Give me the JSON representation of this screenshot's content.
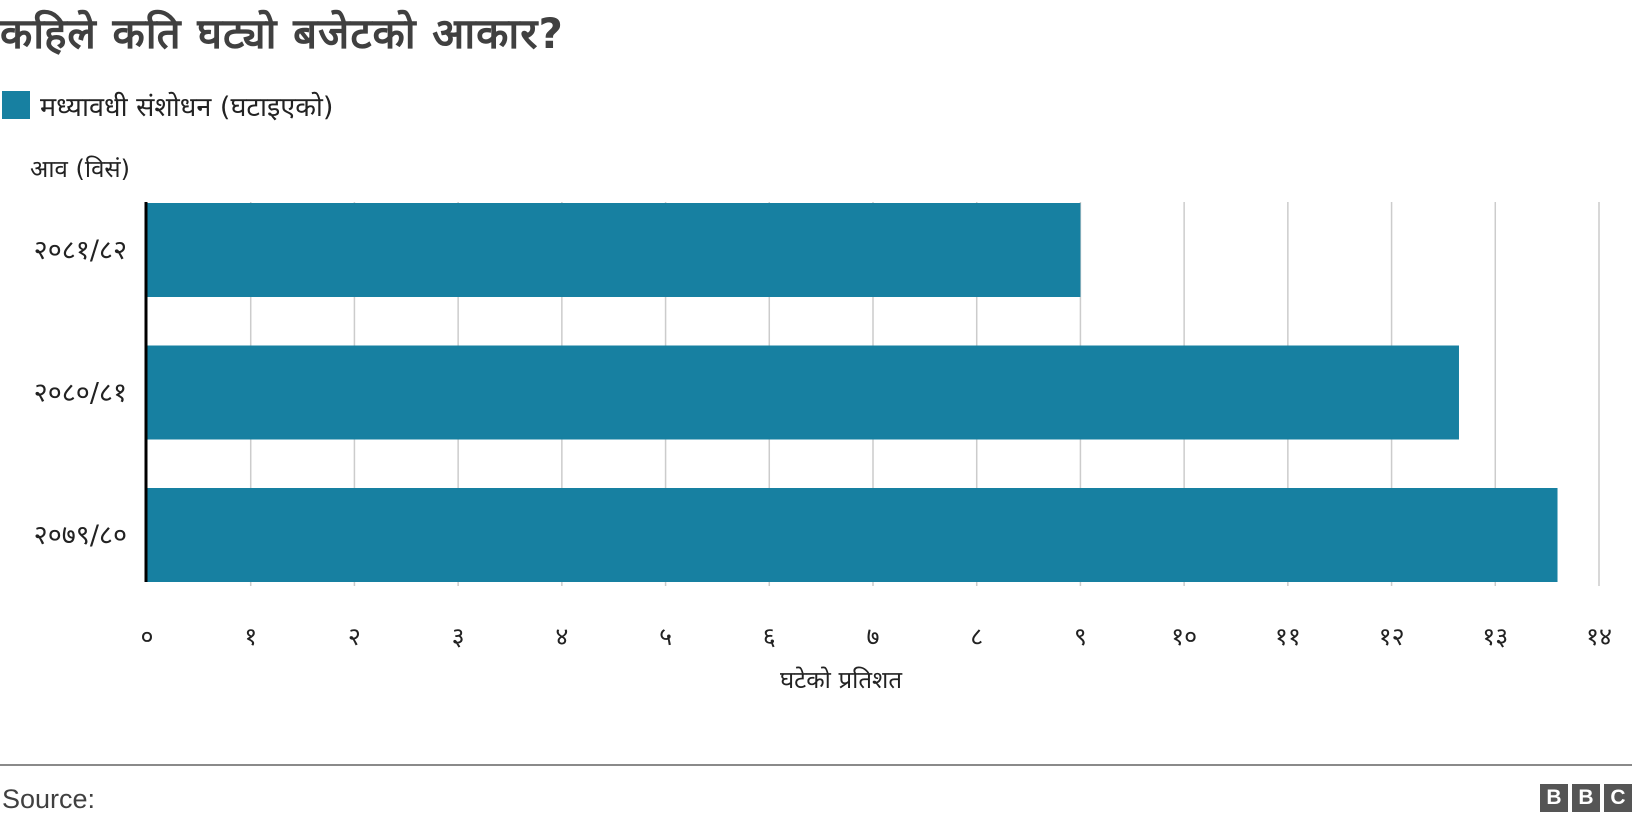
{
  "header": {
    "title": "कहिले कति घट्यो बजेटको आकार?"
  },
  "legend": {
    "label": "मध्यावधी संशोधन (घटाइएको)",
    "color": "#1780a1"
  },
  "chart_data": {
    "type": "bar",
    "orientation": "horizontal",
    "title": "कहिले कति घट्यो बजेटको आकार?",
    "ylabel": "आव (विसं)",
    "xlabel": "घटेको प्रतिशत",
    "categories": [
      "२०८१/८२",
      "२०८०/८१",
      "२०७९/८०"
    ],
    "series": [
      {
        "name": "मध्यावधी संशोधन (घटाइएको)",
        "values": [
          9.0,
          12.65,
          13.6
        ],
        "color": "#1780a1"
      }
    ],
    "xlim": [
      0,
      14
    ],
    "xticks": [
      0,
      1,
      2,
      3,
      4,
      5,
      6,
      7,
      8,
      9,
      10,
      11,
      12,
      13,
      14
    ],
    "xtick_labels": [
      "०",
      "१",
      "२",
      "३",
      "४",
      "५",
      "६",
      "७",
      "८",
      "९",
      "१०",
      "११",
      "१२",
      "१३",
      "१४"
    ],
    "grid": true,
    "legend_position": "top-left"
  },
  "footer": {
    "source": "Source:",
    "logo_letters": [
      "B",
      "B",
      "C"
    ]
  }
}
